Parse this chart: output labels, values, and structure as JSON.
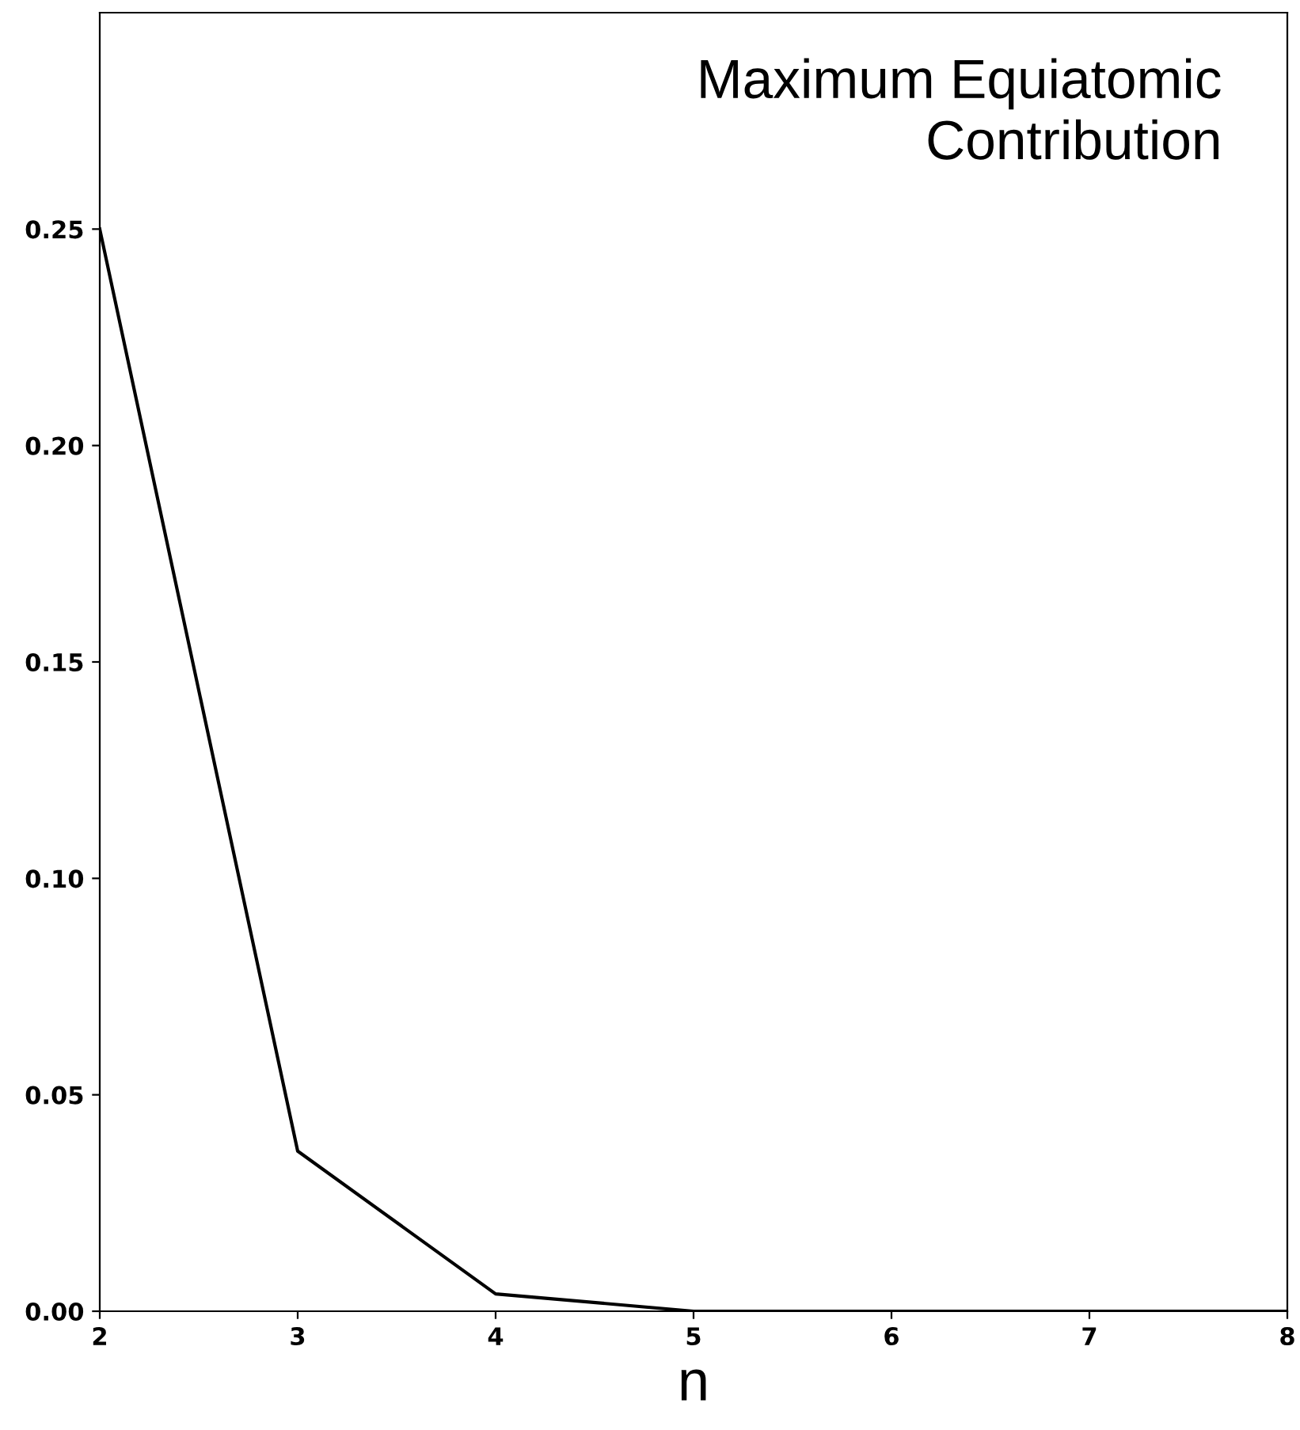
{
  "chart_data": {
    "type": "line",
    "xlabel": "n",
    "x": [
      2,
      3,
      4,
      5,
      6,
      7,
      8
    ],
    "series": [
      {
        "color": "#000000",
        "values": [
          0.25,
          0.037,
          0.004,
          0.0,
          0.0,
          0.0,
          0.0
        ]
      }
    ],
    "xlim": [
      2,
      8
    ],
    "xticks": [
      2,
      3,
      4,
      5,
      6,
      7,
      8
    ],
    "ylim": [
      0,
      0.3
    ],
    "yticks": [
      {
        "value": 0,
        "label": "0.00"
      },
      {
        "value": 0.05,
        "label": "0.05"
      },
      {
        "value": 0.1,
        "label": "0.10"
      },
      {
        "value": 0.15,
        "label": "0.15"
      },
      {
        "value": 0.2,
        "label": "0.20"
      },
      {
        "value": 0.25,
        "label": "0.25"
      }
    ],
    "annotations": [
      "Maximum Equiatomic\nContribution"
    ],
    "grid": false,
    "marker": "none",
    "line_style": "solid"
  }
}
